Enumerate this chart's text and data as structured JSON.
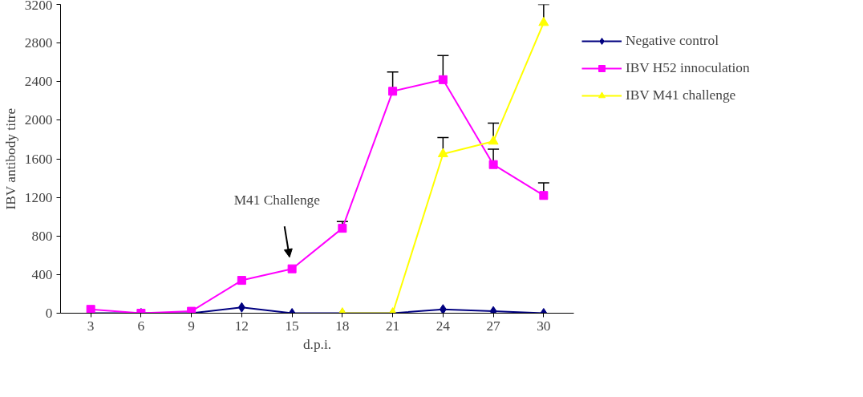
{
  "chart_data": {
    "type": "line",
    "xlabel": "d.p.i.",
    "ylabel": "IBV antibody titre",
    "categories": [
      "3",
      "6",
      "9",
      "12",
      "15",
      "18",
      "21",
      "24",
      "27",
      "30"
    ],
    "ylim": [
      0,
      3200
    ],
    "yticks": [
      0,
      400,
      800,
      1200,
      1600,
      2000,
      2400,
      2800,
      3200
    ],
    "grid": false,
    "legend": "right",
    "series": [
      {
        "name": "Negative control",
        "color": "#000080",
        "marker": "diamond",
        "values": [
          0,
          0,
          0,
          60,
          0,
          0,
          0,
          40,
          20,
          0
        ]
      },
      {
        "name": "IBV H52 innoculation",
        "color": "#ff00ff",
        "marker": "square",
        "values": [
          40,
          0,
          20,
          340,
          460,
          880,
          2300,
          2420,
          1540,
          1220
        ],
        "errors": [
          null,
          null,
          null,
          null,
          null,
          [
            880,
            950
          ],
          [
            2300,
            2500
          ],
          [
            2420,
            2670
          ],
          [
            1540,
            1700
          ],
          [
            1220,
            1350
          ]
        ]
      },
      {
        "name": "IBV M41 challenge",
        "color": "#ffff00",
        "marker": "triangle",
        "values": [
          null,
          null,
          null,
          null,
          null,
          0,
          0,
          1650,
          1780,
          3010
        ],
        "errors": [
          null,
          null,
          null,
          null,
          null,
          null,
          null,
          [
            1650,
            1820
          ],
          [
            1780,
            1970
          ],
          [
            3010,
            3200
          ]
        ]
      }
    ],
    "annotations": [
      "M41 Challenge"
    ]
  }
}
